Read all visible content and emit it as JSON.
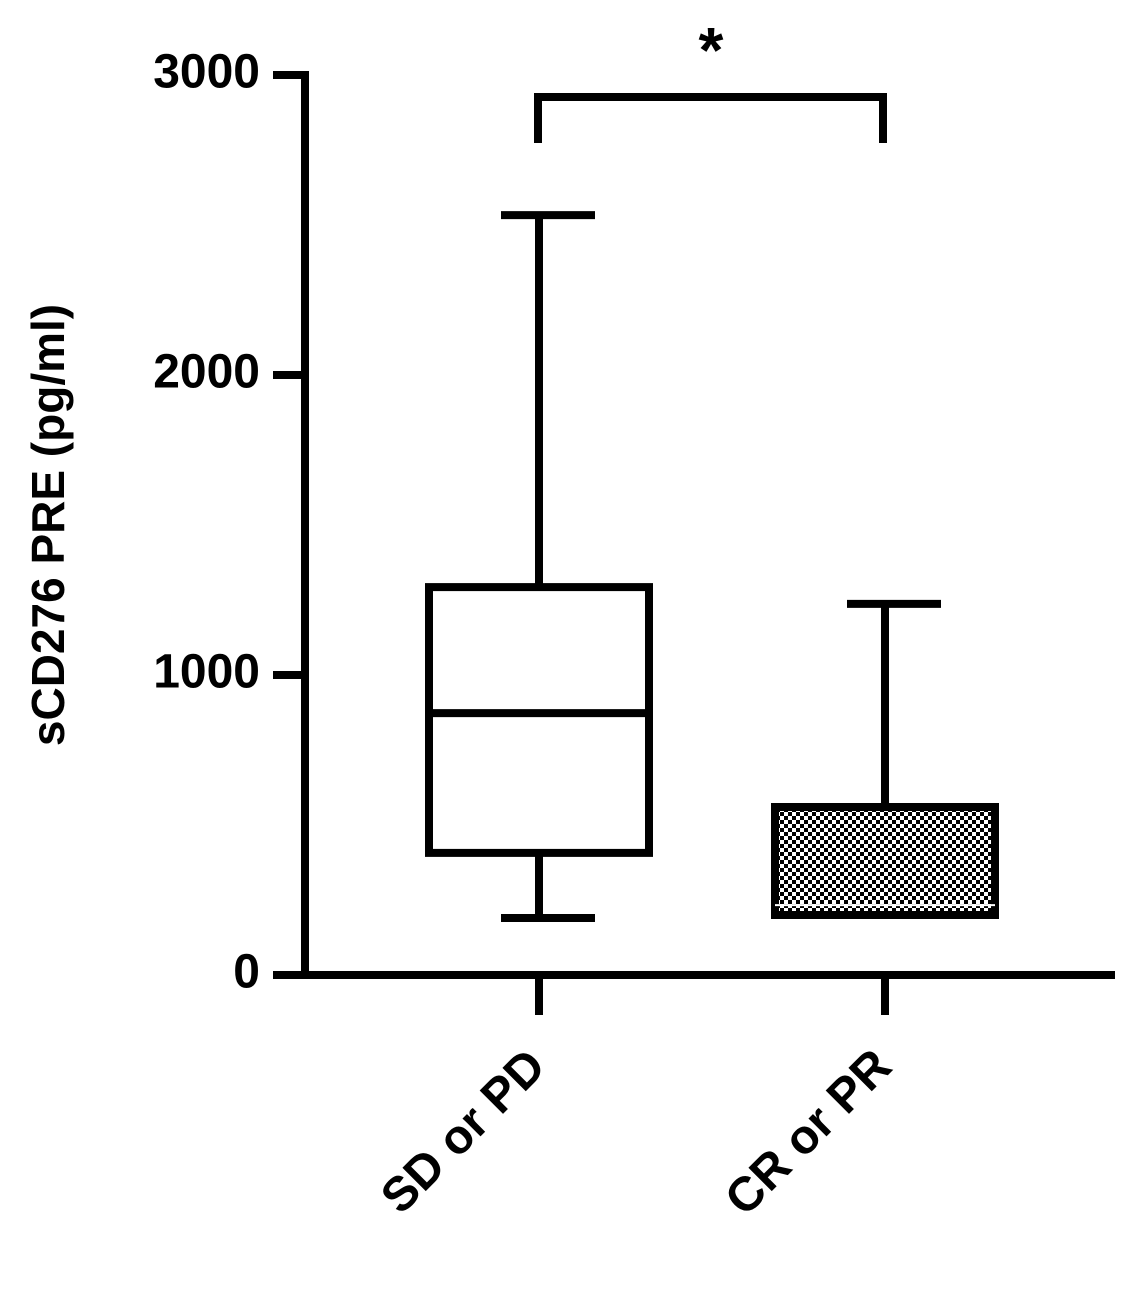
{
  "chart_data": {
    "type": "box",
    "y_label": "sCD276 PRE (pg/ml)",
    "categories": [
      "SD or PD",
      "CR or PR"
    ],
    "boxes": [
      {
        "min": 190,
        "q1": 407,
        "median": 873,
        "q3": 1293,
        "max": 2533,
        "fill": "white"
      },
      {
        "min": 200,
        "q1": 200,
        "median": 233,
        "q3": 560,
        "max": 1237,
        "fill": "checkered"
      }
    ],
    "annotation": "*",
    "color": "#000000",
    "ylim": [
      0,
      3000
    ],
    "yticks": [
      0,
      1000,
      2000,
      3000
    ]
  }
}
